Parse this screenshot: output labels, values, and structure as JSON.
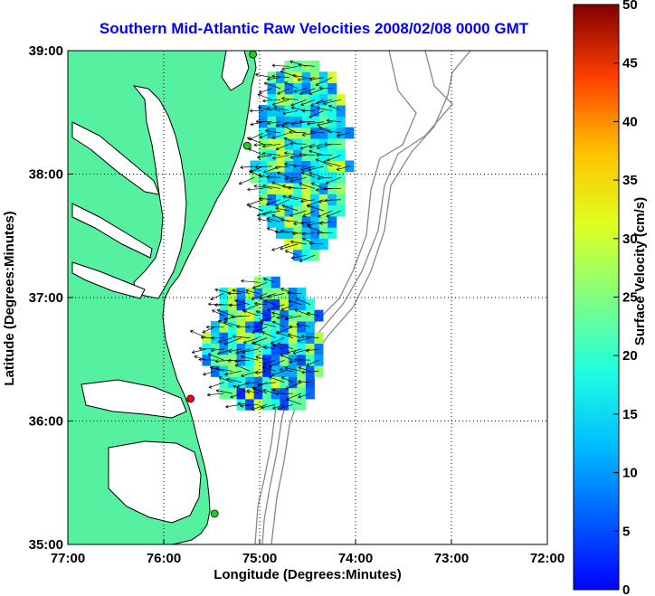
{
  "chart_data": {
    "type": "heatmap",
    "title": "Southern Mid-Atlantic Raw Velocities 2008/02/08 0000 GMT",
    "xlabel": "Longitude (Degrees:Minutes)",
    "ylabel": "Latitude (Degrees:Minutes)",
    "x_ticks": [
      "77:00",
      "76:00",
      "75:00",
      "74:00",
      "73:00",
      "72:00"
    ],
    "x_values": [
      -77,
      -76,
      -75,
      -74,
      -73,
      -72
    ],
    "xlim": [
      -77,
      -72
    ],
    "y_ticks": [
      "39:00",
      "38:00",
      "37:00",
      "36:00",
      "35:00"
    ],
    "y_values": [
      39,
      38,
      37,
      36,
      35
    ],
    "ylim": [
      35,
      39
    ],
    "grid": true,
    "colorbar": {
      "label": "Surface Velocity (cm/s)",
      "range": [
        0,
        50
      ],
      "ticks": [
        "0",
        "5",
        "10",
        "15",
        "20",
        "25",
        "30",
        "35",
        "40",
        "45",
        "50"
      ],
      "tick_values": [
        0,
        5,
        10,
        15,
        20,
        25,
        30,
        35,
        40,
        45,
        50
      ],
      "colormap": "jet"
    },
    "velocity_regions": [
      {
        "name": "north",
        "lon_range": [
          -75.1,
          -74.1
        ],
        "lat_range": [
          37.3,
          38.9
        ],
        "speed_cm_s": [
          12,
          30
        ]
      },
      {
        "name": "south",
        "lon_range": [
          -75.6,
          -74.4
        ],
        "lat_range": [
          36.0,
          37.1
        ],
        "speed_cm_s": [
          8,
          30
        ]
      }
    ],
    "stations": [
      {
        "lon": -75.07,
        "lat": 38.97,
        "color": "#22cc22"
      },
      {
        "lon": -75.13,
        "lat": 38.23,
        "color": "#22cc22"
      },
      {
        "lon": -75.72,
        "lat": 36.18,
        "color": "#ff0000"
      },
      {
        "lon": -75.47,
        "lat": 35.25,
        "color": "#22cc22"
      }
    ],
    "colors": {
      "land": "#55f0a0",
      "coastline": "#000000",
      "bathymetry": "#888888",
      "title": "#0000ff"
    }
  }
}
